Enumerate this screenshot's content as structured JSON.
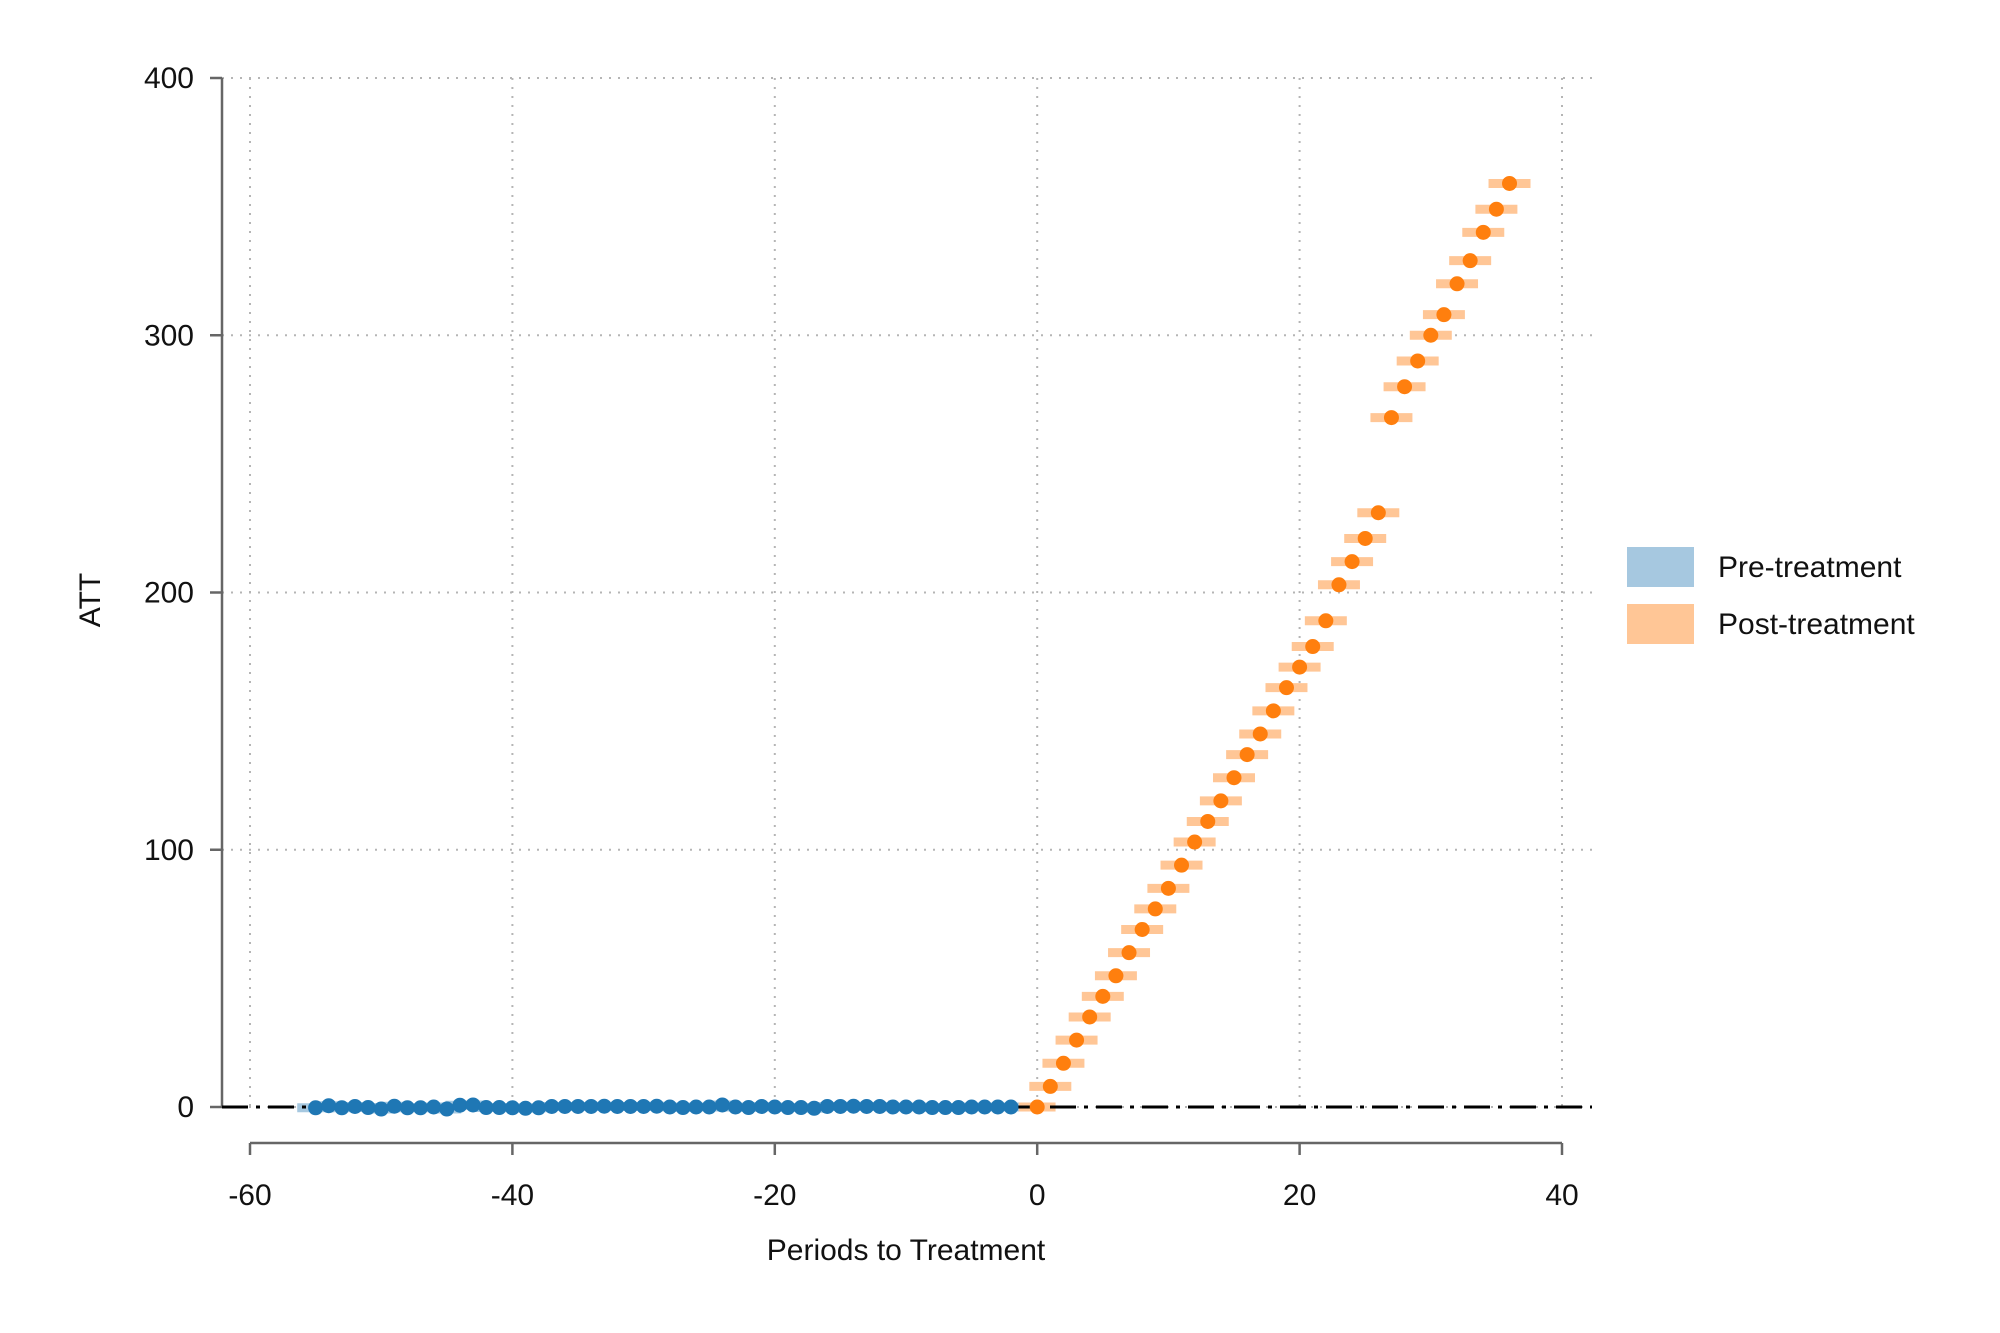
{
  "chart_data": {
    "type": "scatter",
    "title": "",
    "xlabel": "Periods to Treatment",
    "ylabel": "ATT",
    "xlim": [
      -60,
      40
    ],
    "ylim": [
      0,
      400
    ],
    "xticks": [
      "-60",
      "-40",
      "-20",
      "0",
      "20",
      "40"
    ],
    "yticks": [
      "0",
      "100",
      "200",
      "300",
      "400"
    ],
    "grid": true,
    "reference_line_y": 0,
    "legend_position": "right",
    "series": [
      {
        "name": "Pre-treatment",
        "color": "#1f77b4",
        "ci_color": "#a6c8e0",
        "x": [
          -55,
          -54,
          -53,
          -52,
          -51,
          -50,
          -49,
          -48,
          -47,
          -46,
          -45,
          -44,
          -43,
          -42,
          -41,
          -40,
          -39,
          -38,
          -37,
          -36,
          -35,
          -34,
          -33,
          -32,
          -31,
          -30,
          -29,
          -28,
          -27,
          -26,
          -25,
          -24,
          -23,
          -22,
          -21,
          -20,
          -19,
          -18,
          -17,
          -16,
          -15,
          -14,
          -13,
          -12,
          -11,
          -10,
          -9,
          -8,
          -7,
          -6,
          -5,
          -4,
          -3,
          -2
        ],
        "y": [
          -0.3,
          0.5,
          -0.3,
          0.2,
          -0.2,
          -0.8,
          0.3,
          -0.3,
          -0.3,
          0,
          -0.8,
          0.7,
          0.8,
          -0.2,
          -0.2,
          -0.3,
          -0.5,
          -0.3,
          0.2,
          0.2,
          0.2,
          0.2,
          0.3,
          0.2,
          0.2,
          0.2,
          0.3,
          0,
          -0.2,
          0,
          0,
          0.8,
          0,
          -0.2,
          0.2,
          0,
          -0.2,
          -0.2,
          -0.5,
          0.2,
          0.2,
          0.3,
          0.2,
          0.2,
          0,
          0,
          0,
          -0.2,
          -0.2,
          -0.2,
          0,
          0,
          0,
          0
        ],
        "ci_halfwidth": [
          1.4,
          1.1,
          1.1,
          1.1,
          1.1,
          1.1,
          1.1,
          1.1,
          1.1,
          1.1,
          1.1,
          1.1,
          1.1,
          1.1,
          1.1,
          1.1,
          1.1,
          1.1,
          1.1,
          1.1,
          1.1,
          1.1,
          1.1,
          1.1,
          1.1,
          1.1,
          1.1,
          1.1,
          1.1,
          1.1,
          1.1,
          1.1,
          1.1,
          1.1,
          1.1,
          1.1,
          1.1,
          1.1,
          1.1,
          1.1,
          1.1,
          1.1,
          1.1,
          1.1,
          1.1,
          1.1,
          1.1,
          1.1,
          1.1,
          1.1,
          1.1,
          1.1,
          1.1,
          1.1
        ]
      },
      {
        "name": "Post-treatment",
        "color": "#ff7f0e",
        "ci_color": "#ffc696",
        "x": [
          0,
          1,
          2,
          3,
          4,
          5,
          6,
          7,
          8,
          9,
          10,
          11,
          12,
          13,
          14,
          15,
          16,
          17,
          18,
          19,
          20,
          21,
          22,
          23,
          24,
          25,
          26,
          27,
          28,
          29,
          30,
          31,
          32,
          33,
          34,
          35,
          36
        ],
        "y": [
          0,
          8,
          17,
          26,
          35,
          43,
          51,
          60,
          69,
          77,
          85,
          94,
          103,
          111,
          119,
          128,
          137,
          145,
          154,
          163,
          171,
          179,
          189,
          203,
          212,
          221,
          231,
          268,
          280,
          290,
          300,
          308,
          320,
          329,
          340,
          349,
          359
        ],
        "ci_halfwidth": [
          1.4,
          1.6,
          1.6,
          1.6,
          1.6,
          1.6,
          1.6,
          1.6,
          1.6,
          1.6,
          1.6,
          1.6,
          1.6,
          1.6,
          1.6,
          1.6,
          1.6,
          1.6,
          1.6,
          1.6,
          1.6,
          1.6,
          1.6,
          1.6,
          1.6,
          1.6,
          1.6,
          1.6,
          1.6,
          1.6,
          1.6,
          1.6,
          1.6,
          1.6,
          1.6,
          1.6,
          1.6
        ]
      }
    ]
  }
}
